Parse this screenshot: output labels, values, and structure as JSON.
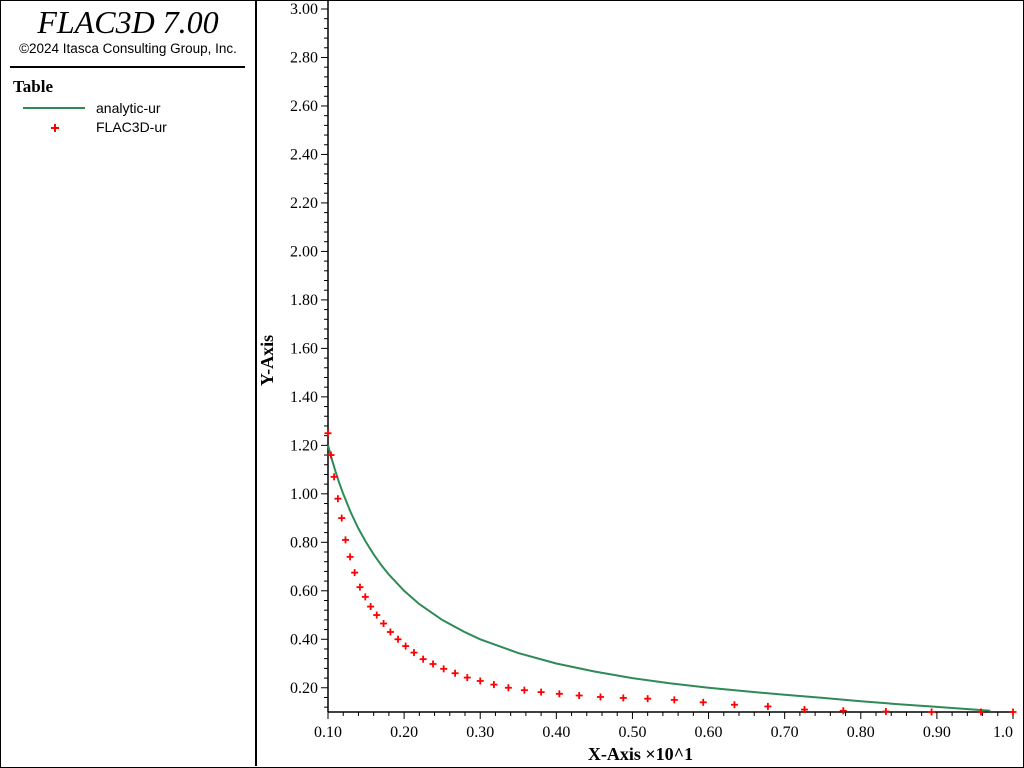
{
  "app": {
    "title": "FLAC3D 7.00",
    "copyright": "©2024 Itasca Consulting Group, Inc."
  },
  "legend": {
    "title": "Table",
    "items": [
      {
        "label": "analytic-ur",
        "style": "line",
        "color": "#2e8b57"
      },
      {
        "label": "FLAC3D-ur",
        "style": "plus",
        "color": "#ff0000"
      }
    ]
  },
  "chart_data": {
    "type": "line",
    "xlabel": "X-Axis ×10^1",
    "ylabel": "Y-Axis",
    "xlim": [
      0.1,
      1.0
    ],
    "ylim": [
      0.1,
      3.0
    ],
    "x_ticks": [
      "0.10",
      "0.20",
      "0.30",
      "0.40",
      "0.50",
      "0.60",
      "0.70",
      "0.80",
      "0.90",
      "1.0"
    ],
    "y_ticks": [
      "0.20",
      "0.40",
      "0.60",
      "0.80",
      "1.00",
      "1.20",
      "1.40",
      "1.60",
      "1.80",
      "2.00",
      "2.20",
      "2.40",
      "2.60",
      "2.80",
      "3.00"
    ],
    "series": [
      {
        "name": "analytic-ur",
        "style": "line",
        "color": "#2e8b57",
        "x": [
          0.1,
          0.105,
          0.11,
          0.115,
          0.12,
          0.13,
          0.14,
          0.15,
          0.16,
          0.17,
          0.18,
          0.2,
          0.22,
          0.25,
          0.28,
          0.3,
          0.35,
          0.4,
          0.45,
          0.5,
          0.55,
          0.6,
          0.65,
          0.7,
          0.75,
          0.8,
          0.85,
          0.9,
          0.95,
          0.97
        ],
        "y": [
          1.2,
          1.143,
          1.091,
          1.043,
          1.0,
          0.923,
          0.857,
          0.8,
          0.75,
          0.706,
          0.667,
          0.6,
          0.545,
          0.48,
          0.429,
          0.4,
          0.343,
          0.3,
          0.267,
          0.24,
          0.218,
          0.2,
          0.185,
          0.171,
          0.158,
          0.144,
          0.132,
          0.121,
          0.11,
          0.105
        ]
      },
      {
        "name": "FLAC3D-ur",
        "style": "plus",
        "color": "#ff0000",
        "x": [
          0.1,
          0.104,
          0.108,
          0.113,
          0.118,
          0.123,
          0.129,
          0.135,
          0.142,
          0.149,
          0.156,
          0.164,
          0.173,
          0.182,
          0.192,
          0.202,
          0.213,
          0.225,
          0.238,
          0.252,
          0.267,
          0.283,
          0.3,
          0.318,
          0.337,
          0.358,
          0.38,
          0.404,
          0.43,
          0.458,
          0.488,
          0.52,
          0.555,
          0.593,
          0.634,
          0.678,
          0.726,
          0.777,
          0.833,
          0.893,
          0.958,
          1.0
        ],
        "y": [
          1.25,
          1.16,
          1.07,
          0.98,
          0.9,
          0.81,
          0.74,
          0.675,
          0.615,
          0.575,
          0.535,
          0.5,
          0.465,
          0.43,
          0.4,
          0.372,
          0.345,
          0.318,
          0.298,
          0.278,
          0.26,
          0.242,
          0.228,
          0.213,
          0.2,
          0.19,
          0.182,
          0.175,
          0.168,
          0.162,
          0.158,
          0.155,
          0.15,
          0.14,
          0.13,
          0.123,
          0.11,
          0.105,
          0.102,
          0.1,
          0.1,
          0.1
        ]
      }
    ]
  }
}
